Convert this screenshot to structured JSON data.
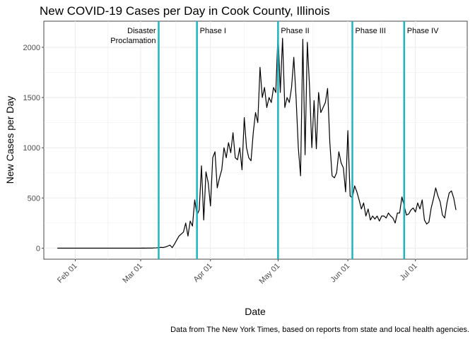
{
  "chart_data": {
    "type": "line",
    "title": "New COVID-19 Cases per Day in Cook County, Illinois",
    "xlabel": "Date",
    "ylabel": "New Cases per Day",
    "caption": "Data from The New York Times, based on reports from state and local health agencies.",
    "x_range": [
      "2020-01-18",
      "2020-07-24"
    ],
    "ylim": [
      -110,
      2260
    ],
    "grid": true,
    "x_ticks": [
      {
        "date": "2020-02-01",
        "label": "Feb 01"
      },
      {
        "date": "2020-03-01",
        "label": "Mar 01"
      },
      {
        "date": "2020-04-01",
        "label": "Apr 01"
      },
      {
        "date": "2020-05-01",
        "label": "May 01"
      },
      {
        "date": "2020-06-01",
        "label": "Jun 01"
      },
      {
        "date": "2020-07-01",
        "label": "Jul 01"
      }
    ],
    "y_ticks": [
      0,
      500,
      1000,
      1500,
      2000
    ],
    "line_color": "#000000",
    "event_color": "#1fb5be",
    "events": [
      {
        "date": "2020-03-09",
        "label_lines": [
          "Disaster",
          "Proclamation"
        ],
        "side": "left"
      },
      {
        "date": "2020-03-26",
        "label_lines": [
          "Phase I"
        ],
        "side": "right"
      },
      {
        "date": "2020-05-01",
        "label_lines": [
          "Phase II"
        ],
        "side": "right"
      },
      {
        "date": "2020-06-03",
        "label_lines": [
          "Phase III"
        ],
        "side": "right"
      },
      {
        "date": "2020-06-26",
        "label_lines": [
          "Phase IV"
        ],
        "side": "right"
      }
    ],
    "series": [
      {
        "start_date": "2020-01-24",
        "values": [
          0,
          0,
          0,
          0,
          0,
          0,
          0,
          0,
          0,
          0,
          0,
          0,
          0,
          0,
          0,
          0,
          0,
          0,
          0,
          0,
          0,
          0,
          0,
          0,
          0,
          0,
          0,
          0,
          0,
          0,
          0,
          0,
          0,
          0,
          0,
          0,
          0,
          0,
          1,
          0,
          1,
          1,
          1,
          2,
          3,
          5,
          8,
          6,
          12,
          20,
          30,
          5,
          40,
          80,
          120,
          140,
          160,
          250,
          120,
          270,
          220,
          480,
          330,
          380,
          820,
          280,
          760,
          650,
          420,
          900,
          960,
          600,
          700,
          780,
          1000,
          900,
          1050,
          950,
          1150,
          900,
          880,
          1000,
          780,
          1300,
          1000,
          900,
          870,
          1150,
          1350,
          1250,
          1800,
          1500,
          1600,
          1400,
          1500,
          1450,
          1600,
          1550,
          2150,
          1550,
          2090,
          1400,
          1500,
          1450,
          1600,
          1900,
          1500,
          1000,
          720,
          2080,
          930,
          2050,
          1600,
          1000,
          1470,
          990,
          1550,
          1350,
          1400,
          1450,
          1590,
          1050,
          720,
          700,
          750,
          960,
          850,
          800,
          560,
          1170,
          520,
          500,
          620,
          560,
          480,
          390,
          450,
          320,
          390,
          280,
          320,
          290,
          320,
          270,
          320,
          320,
          300,
          350,
          320,
          300,
          250,
          350,
          350,
          510,
          420,
          330,
          340,
          380,
          400,
          360,
          450,
          390,
          480,
          280,
          240,
          260,
          400,
          490,
          600,
          520,
          460,
          330,
          300,
          450,
          550,
          570,
          500,
          380
        ]
      }
    ]
  }
}
